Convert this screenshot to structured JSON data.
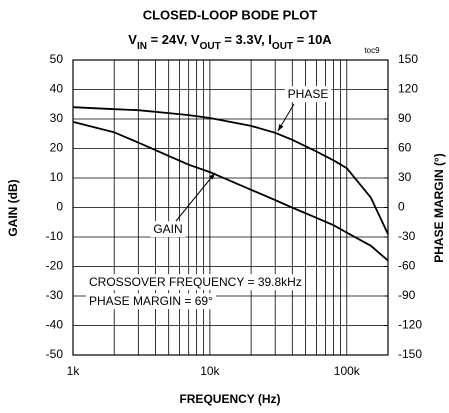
{
  "chart_data": {
    "type": "line",
    "title": "CLOSED-LOOP BODE PLOT",
    "subtitle": [
      "V",
      "IN",
      " = 24V, V",
      "OUT",
      " = 3.3V, I",
      "OUT",
      " = 10A"
    ],
    "xlabel": "FREQUENCY (Hz)",
    "ylabel": "GAIN (dB)",
    "y2label": "PHASE MARGIN (°)",
    "log_x": true,
    "grid": true,
    "x": [
      1000,
      2000,
      3000,
      5000,
      7000,
      10000,
      20000,
      30000,
      39800,
      60000,
      80000,
      100000,
      150000,
      200000
    ],
    "series": [
      {
        "name": "GAIN",
        "color": "#000000",
        "values": [
          29,
          25.5,
          22,
          17.5,
          14.5,
          12,
          6,
          2.5,
          0,
          -3.5,
          -6,
          -8.5,
          -13,
          -18
        ]
      },
      {
        "name": "PHASE",
        "color": "#000000",
        "axis": "y2",
        "values": [
          102,
          100,
          99,
          96,
          94,
          91,
          83,
          76,
          69,
          57,
          48,
          40,
          10,
          -27
        ]
      }
    ],
    "xlim": [
      1000,
      200000
    ],
    "xticks": [
      {
        "value": 1000,
        "label": "1k"
      },
      {
        "value": 10000,
        "label": "10k"
      },
      {
        "value": 100000,
        "label": "100k"
      }
    ],
    "x_minor_ticks": [
      2000,
      3000,
      4000,
      5000,
      6000,
      7000,
      8000,
      9000,
      20000,
      30000,
      40000,
      50000,
      60000,
      70000,
      80000,
      90000
    ],
    "ylim": [
      -50,
      50
    ],
    "yticks": [
      -50,
      -40,
      -30,
      -20,
      -10,
      0,
      10,
      20,
      30,
      40,
      50
    ],
    "y2lim": [
      -150,
      150
    ],
    "y2ticks": [
      -150,
      -120,
      -90,
      -60,
      -30,
      0,
      30,
      60,
      90,
      120,
      150
    ],
    "annotations": [
      "PHASE",
      "GAIN",
      "CROSSOVER FREQUENCY = 39.8kHz",
      "PHASE MARGIN = 69°",
      "toc9"
    ]
  }
}
